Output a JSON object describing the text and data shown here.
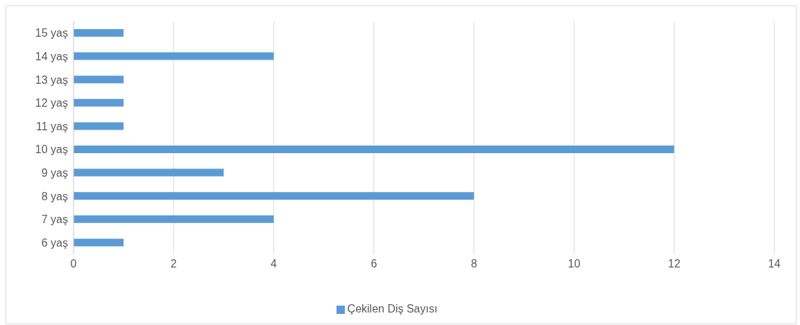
{
  "chart_data": {
    "type": "bar",
    "orientation": "horizontal",
    "categories": [
      "15 yaş",
      "14 yaş",
      "13 yaş",
      "12 yaş",
      "11 yaş",
      "10 yaş",
      "9 yaş",
      "8 yaş",
      "7 yaş",
      "6 yaş"
    ],
    "series": [
      {
        "name": "Çekilen Diş Sayısı",
        "color": "#5b9bd5",
        "values": [
          1,
          4,
          1,
          1,
          1,
          12,
          3,
          8,
          4,
          1
        ]
      }
    ],
    "xlim": [
      0,
      14
    ],
    "xticks": [
      0,
      2,
      4,
      6,
      8,
      10,
      12,
      14
    ],
    "grid": "x",
    "legend": "bottom"
  }
}
